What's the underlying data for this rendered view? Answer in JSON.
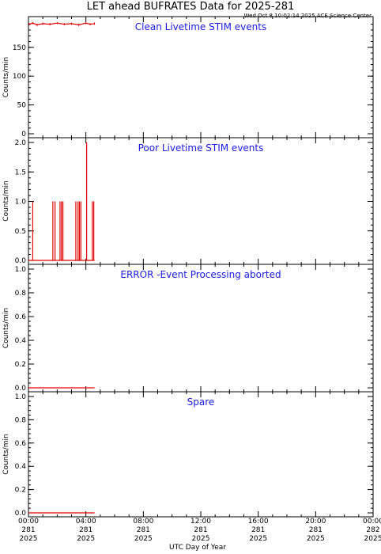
{
  "title": "LET ahead BUFRATES Data for 2025-281",
  "timestamp": "Wed Oct  8 10:02:14 2025 ACE Science Center",
  "xlabel": "UTC Day of Year",
  "x_ticks": [
    {
      "hour": 0,
      "lines": [
        "00:00",
        "281",
        "2025"
      ]
    },
    {
      "hour": 4,
      "lines": [
        "04:00",
        "281",
        "2025"
      ]
    },
    {
      "hour": 8,
      "lines": [
        "08:00",
        "281",
        "2025"
      ]
    },
    {
      "hour": 12,
      "lines": [
        "12:00",
        "281",
        "2025"
      ]
    },
    {
      "hour": 16,
      "lines": [
        "16:00",
        "281",
        "2025"
      ]
    },
    {
      "hour": 20,
      "lines": [
        "20:00",
        "281",
        "2025"
      ]
    },
    {
      "hour": 24,
      "lines": [
        "00:00",
        "282",
        "2025"
      ]
    }
  ],
  "line_color": "#e00000",
  "title_color": "#1a1ae6",
  "chart_data": [
    {
      "type": "line",
      "title": "Clean Livetime STIM events",
      "ylabel": "Counts/min",
      "ylim": [
        0,
        195
      ],
      "yticks": [
        {
          "value": 0,
          "label": "0"
        },
        {
          "value": 50,
          "label": "50"
        },
        {
          "value": 100,
          "label": "100"
        },
        {
          "value": 150,
          "label": "150"
        }
      ],
      "x_units": "hours",
      "xlim": [
        0,
        24
      ],
      "series": [
        {
          "style": "noisy-flat",
          "x_range": [
            0.05,
            4.6
          ],
          "y_center": 191,
          "y_spread": 2,
          "points": [
            [
              0.05,
              190
            ],
            [
              0.3,
              192
            ],
            [
              0.6,
              189
            ],
            [
              1.0,
              191
            ],
            [
              1.5,
              190
            ],
            [
              2.0,
              192
            ],
            [
              2.5,
              190
            ],
            [
              3.0,
              191
            ],
            [
              3.5,
              189
            ],
            [
              4.0,
              192
            ],
            [
              4.3,
              190
            ],
            [
              4.6,
              191
            ]
          ]
        }
      ]
    },
    {
      "type": "line",
      "title": "Poor Livetime STIM events",
      "ylabel": "Counts/min",
      "ylim": [
        0,
        2
      ],
      "yticks": [
        {
          "value": 0,
          "label": "0.0"
        },
        {
          "value": 0.5,
          "label": "0.5"
        },
        {
          "value": 1,
          "label": "1.0"
        },
        {
          "value": 1.5,
          "label": "1.5"
        },
        {
          "value": 2,
          "label": "2.0"
        }
      ],
      "x_units": "hours",
      "xlim": [
        0,
        24
      ],
      "series": [
        {
          "style": "spikes",
          "x_range": [
            0.0,
            4.6
          ],
          "baseline": 0,
          "spikes": [
            [
              0.3,
              1
            ],
            [
              1.7,
              1
            ],
            [
              1.85,
              1
            ],
            [
              2.2,
              1
            ],
            [
              2.3,
              1
            ],
            [
              2.4,
              1
            ],
            [
              3.3,
              1
            ],
            [
              3.45,
              1
            ],
            [
              3.55,
              1
            ],
            [
              3.65,
              1
            ],
            [
              4.05,
              2
            ],
            [
              4.45,
              1
            ],
            [
              4.55,
              1
            ]
          ]
        }
      ]
    },
    {
      "type": "line",
      "title": "ERROR -Event Processing aborted",
      "ylabel": "Counts/min",
      "ylim": [
        0,
        1
      ],
      "yticks": [
        {
          "value": 0,
          "label": "0.0"
        },
        {
          "value": 0.2,
          "label": "0.2"
        },
        {
          "value": 0.4,
          "label": "0.4"
        },
        {
          "value": 0.6,
          "label": "0.6"
        },
        {
          "value": 0.8,
          "label": "0.8"
        },
        {
          "value": 1,
          "label": "1.0"
        }
      ],
      "x_units": "hours",
      "xlim": [
        0,
        24
      ],
      "series": [
        {
          "style": "flat",
          "x_range": [
            0.0,
            4.6
          ],
          "value": 0
        }
      ]
    },
    {
      "type": "line",
      "title": "Spare",
      "ylabel": "Counts/min",
      "ylim": [
        0,
        1
      ],
      "yticks": [
        {
          "value": 0,
          "label": "0.0"
        },
        {
          "value": 0.2,
          "label": "0.2"
        },
        {
          "value": 0.4,
          "label": "0.4"
        },
        {
          "value": 0.6,
          "label": "0.6"
        },
        {
          "value": 0.8,
          "label": "0.8"
        },
        {
          "value": 1,
          "label": "1.0"
        }
      ],
      "x_units": "hours",
      "xlim": [
        0,
        24
      ],
      "series": [
        {
          "style": "flat",
          "x_range": [
            0.0,
            4.6
          ],
          "value": 0
        }
      ]
    }
  ]
}
